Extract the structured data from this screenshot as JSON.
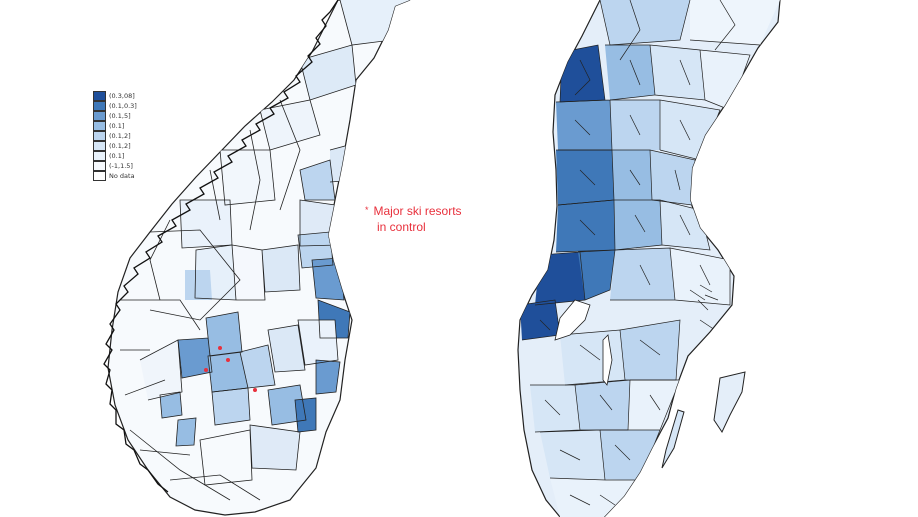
{
  "legend": {
    "items": [
      {
        "label": "(0.3,08]",
        "color": "#1f4f9a"
      },
      {
        "label": "(0.1,0.3]",
        "color": "#3f78b8"
      },
      {
        "label": "(0.1,5]",
        "color": "#6a9bd0"
      },
      {
        "label": "(0.1]",
        "color": "#97bde3"
      },
      {
        "label": "(0.1,2]",
        "color": "#bcd5ef"
      },
      {
        "label": "(0.1,2]",
        "color": "#d6e6f6"
      },
      {
        "label": "(0.1]",
        "color": "#e9f2fb"
      },
      {
        "label": "(-1,1.5]",
        "color": "#f6f9fd"
      },
      {
        "label": "No data",
        "color": "#ffffff"
      }
    ]
  },
  "annotation": {
    "marker": "*",
    "line1": "Major ski resorts",
    "line2": "in control",
    "color": "#e8303c"
  },
  "maps": {
    "left_country": "norway",
    "right_country": "sweden",
    "border_color": "#222222",
    "resort_markers": 4
  }
}
